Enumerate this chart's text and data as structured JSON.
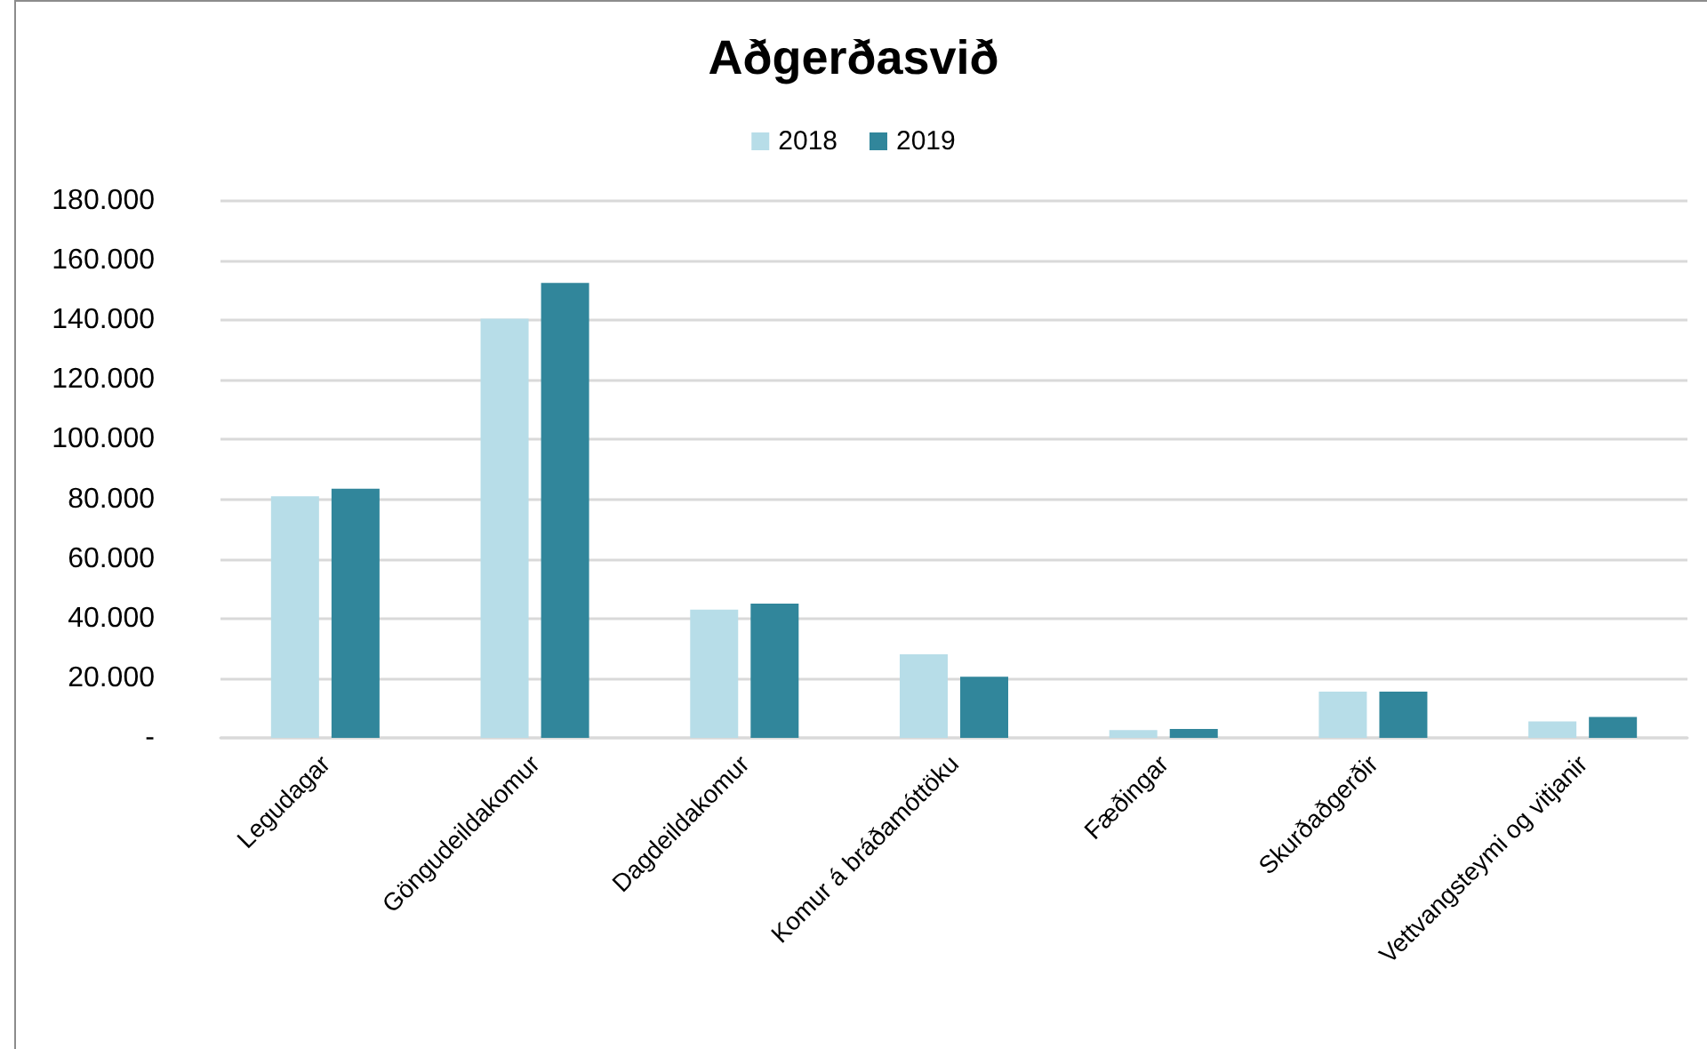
{
  "chart_data": {
    "type": "bar",
    "title": "Aðgerðasvið",
    "categories": [
      "Legudagar",
      "Göngudeildakomur",
      "Dagdeildakomur",
      "Komur á bráðamóttöku",
      "Fæðingar",
      "Skurðaðgerðir",
      "Vettvangsteymi og vitjanir"
    ],
    "series": [
      {
        "name": "2018",
        "color": "#b7dde8",
        "values": [
          81000,
          140500,
          43000,
          28000,
          2600,
          15500,
          5500
        ]
      },
      {
        "name": "2019",
        "color": "#31869b",
        "values": [
          83500,
          152500,
          45000,
          20500,
          3000,
          15500,
          7000
        ]
      }
    ],
    "ylim": [
      0,
      180000
    ],
    "yticks": [
      {
        "value": 0,
        "label": "-"
      },
      {
        "value": 20000,
        "label": "20.000"
      },
      {
        "value": 40000,
        "label": "40.000"
      },
      {
        "value": 60000,
        "label": "60.000"
      },
      {
        "value": 80000,
        "label": "80.000"
      },
      {
        "value": 100000,
        "label": "100.000"
      },
      {
        "value": 120000,
        "label": "120.000"
      },
      {
        "value": 140000,
        "label": "140.000"
      },
      {
        "value": 160000,
        "label": "160.000"
      },
      {
        "value": 180000,
        "label": "180.000"
      }
    ],
    "grid": "y",
    "legend": "top"
  }
}
